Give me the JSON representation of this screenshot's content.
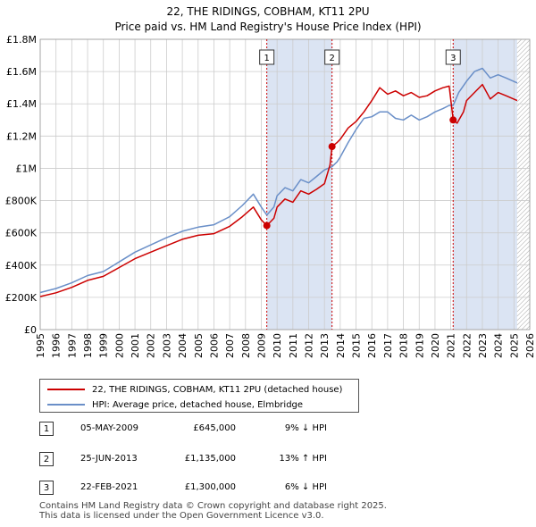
{
  "chart_data": {
    "type": "line",
    "title": "22, THE RIDINGS, COBHAM, KT11 2PU",
    "subtitle": "Price paid vs. HM Land Registry's House Price Index (HPI)",
    "xlim": [
      1995,
      2026
    ],
    "ylim": [
      0,
      1800000
    ],
    "x_ticks": [
      1995,
      1996,
      1997,
      1998,
      1999,
      2000,
      2001,
      2002,
      2003,
      2004,
      2005,
      2006,
      2007,
      2008,
      2009,
      2010,
      2011,
      2012,
      2013,
      2014,
      2015,
      2016,
      2017,
      2018,
      2019,
      2020,
      2021,
      2022,
      2023,
      2024,
      2025,
      2026
    ],
    "y_ticks": [
      0,
      200000,
      400000,
      600000,
      800000,
      1000000,
      1200000,
      1400000,
      1600000,
      1800000
    ],
    "y_tick_labels": [
      "£0",
      "£200K",
      "£400K",
      "£600K",
      "£800K",
      "£1M",
      "£1.2M",
      "£1.4M",
      "£1.6M",
      "£1.8M"
    ],
    "grid": true,
    "colors": {
      "property": "#cc0000",
      "hpi": "#6a8fc8",
      "shade": "#dbe4f3",
      "vline": "#cc0000",
      "grid": "#cccccc"
    },
    "data_end_year": 2025.2,
    "series": [
      {
        "name": "22, THE RIDINGS, COBHAM, KT11 2PU (detached house)",
        "x": [
          1995,
          1996,
          1997,
          1998,
          1999,
          2000,
          2001,
          2002,
          2003,
          2004,
          2005,
          2006,
          2007,
          2007.8,
          2008.5,
          2009,
          2009.35,
          2009.8,
          2010,
          2010.5,
          2011,
          2011.5,
          2012,
          2012.5,
          2013.0,
          2013.35,
          2013.48,
          2013.8,
          2014,
          2014.5,
          2015,
          2015.5,
          2016,
          2016.5,
          2017,
          2017.5,
          2018,
          2018.5,
          2019,
          2019.5,
          2020,
          2020.5,
          2020.9,
          2021.15,
          2021.4,
          2021.8,
          2022,
          2022.5,
          2023,
          2023.5,
          2024,
          2024.5,
          2025.2
        ],
        "values": [
          205000,
          228000,
          262000,
          305000,
          330000,
          385000,
          440000,
          480000,
          520000,
          560000,
          585000,
          595000,
          640000,
          700000,
          760000,
          680000,
          645000,
          690000,
          760000,
          810000,
          790000,
          860000,
          840000,
          870000,
          905000,
          1020000,
          1135000,
          1160000,
          1180000,
          1250000,
          1290000,
          1350000,
          1420000,
          1500000,
          1460000,
          1480000,
          1450000,
          1470000,
          1440000,
          1450000,
          1480000,
          1500000,
          1510000,
          1300000,
          1280000,
          1350000,
          1420000,
          1470000,
          1520000,
          1430000,
          1470000,
          1450000,
          1420000
        ]
      },
      {
        "name": "HPI: Average price, detached house, Elmbridge",
        "x": [
          1995,
          1996,
          1997,
          1998,
          1999,
          2000,
          2001,
          2002,
          2003,
          2004,
          2005,
          2006,
          2007,
          2007.8,
          2008.5,
          2009,
          2009.35,
          2009.8,
          2010,
          2010.5,
          2011,
          2011.5,
          2012,
          2012.5,
          2013.0,
          2013.48,
          2013.8,
          2014,
          2014.5,
          2015,
          2015.5,
          2016,
          2016.5,
          2017,
          2017.5,
          2018,
          2018.5,
          2019,
          2019.5,
          2020,
          2020.5,
          2020.9,
          2021.15,
          2021.5,
          2022,
          2022.5,
          2023,
          2023.5,
          2024,
          2024.5,
          2025.2
        ],
        "values": [
          230000,
          255000,
          290000,
          335000,
          360000,
          420000,
          480000,
          525000,
          570000,
          610000,
          635000,
          650000,
          700000,
          770000,
          840000,
          760000,
          710000,
          760000,
          830000,
          880000,
          860000,
          930000,
          910000,
          950000,
          990000,
          1010000,
          1040000,
          1070000,
          1160000,
          1240000,
          1310000,
          1320000,
          1350000,
          1350000,
          1310000,
          1300000,
          1330000,
          1300000,
          1320000,
          1350000,
          1370000,
          1390000,
          1390000,
          1470000,
          1540000,
          1600000,
          1620000,
          1560000,
          1580000,
          1560000,
          1530000
        ]
      }
    ],
    "sales": [
      {
        "id": "1",
        "x": 2009.35,
        "value": 645000
      },
      {
        "id": "2",
        "x": 2013.48,
        "value": 1135000
      },
      {
        "id": "3",
        "x": 2021.15,
        "value": 1300000
      }
    ],
    "shaded_ranges": [
      [
        2009.35,
        2013.48
      ],
      [
        2021.15,
        2025.2
      ]
    ]
  },
  "legend": {
    "property_label": "22, THE RIDINGS, COBHAM, KT11 2PU (detached house)",
    "hpi_label": "HPI: Average price, detached house, Elmbridge"
  },
  "sales_table": [
    {
      "id": "1",
      "date": "05-MAY-2009",
      "price": "£645,000",
      "hpi": "9% ↓ HPI"
    },
    {
      "id": "2",
      "date": "25-JUN-2013",
      "price": "£1,135,000",
      "hpi": "13% ↑ HPI"
    },
    {
      "id": "3",
      "date": "22-FEB-2021",
      "price": "£1,300,000",
      "hpi": "6% ↓ HPI"
    }
  ],
  "footer": {
    "line1": "Contains HM Land Registry data © Crown copyright and database right 2025.",
    "line2": "This data is licensed under the Open Government Licence v3.0."
  }
}
